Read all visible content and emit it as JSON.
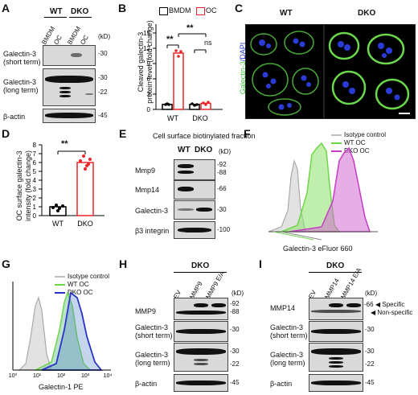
{
  "panelA": {
    "letter": "A",
    "wt": "WT",
    "dko": "DKO",
    "lanes": [
      "BMDM",
      "OC",
      "BMDM",
      "OC"
    ],
    "kd": "(kD)",
    "rows": [
      "Galectin-3\n(short term)",
      "Galectin-3\n(long term)",
      "β-actin"
    ],
    "row_labels": [
      "Galectin-3",
      "(short term)",
      "Galectin-3",
      "(long term)",
      "β-actin"
    ],
    "markers": [
      "-30",
      "-30",
      "-22",
      "-45"
    ]
  },
  "panelB": {
    "letter": "B",
    "legend": [
      "BMDM",
      "OC"
    ],
    "ylabel_line1": "Cleaved galectin-3",
    "ylabel_line2": "protein level (fold change)",
    "sig1": "**",
    "sig2": "**",
    "ns": "ns",
    "colors": {
      "bmdm": "#000000",
      "oc": "#e8262a"
    }
  },
  "panelC": {
    "letter": "C",
    "wt": "WT",
    "dko": "DKO",
    "side_label_green": "Galectin-3",
    "side_label_blue": "/DAPI"
  },
  "panelD": {
    "letter": "D",
    "ylabel_line1": "OC surface galectin-3",
    "ylabel_line2": "intensity (fold change)",
    "sig": "**",
    "colors": {
      "wt": "#000000",
      "dko": "#e8262a"
    }
  },
  "panelE": {
    "letter": "E",
    "title": "Cell surface biotinylated fraction",
    "wt": "WT",
    "dko": "DKO",
    "kd": "(kD)",
    "rows": [
      "Mmp9",
      "Mmp14",
      "Galectin-3",
      "β3 integrin"
    ],
    "markers": [
      "-92",
      "-88",
      "-66",
      "-30",
      "-100"
    ]
  },
  "panelF": {
    "letter": "F",
    "legend": [
      "Isotype control",
      "WT OC",
      "DKO OC"
    ],
    "xlabel": "Galectin-3 eFluor 660",
    "colors": {
      "iso": "#bdbdbd",
      "wt": "#6fd64a",
      "dko": "#c43cc4"
    }
  },
  "panelG": {
    "letter": "G",
    "legend": [
      "Isotype control",
      "WT OC",
      "DKO OC"
    ],
    "xlabel": "Galectin-1 PE",
    "colors": {
      "iso": "#bdbdbd",
      "wt": "#6fd64a",
      "dko": "#2a33c8"
    }
  },
  "panelH": {
    "letter": "H",
    "group": "DKO",
    "lanes": [
      "EV",
      "MMP9",
      "MMP9 E/A"
    ],
    "kd": "(kD)",
    "row_labels": [
      "MMP9",
      "Galectin-3",
      "(short term)",
      "Galectin-3",
      "(long term)",
      "β-actin"
    ],
    "markers": [
      "-92",
      "-88",
      "-30",
      "-30",
      "-22",
      "-45"
    ]
  },
  "panelI": {
    "letter": "I",
    "group": "DKO",
    "lanes": [
      "EV",
      "MMP14",
      "MMP14 E/A"
    ],
    "kd": "(kD)",
    "row_labels": [
      "MMP14",
      "Galectin-3",
      "(short term)",
      "Galectin-3",
      "(long term)",
      "β-actin"
    ],
    "markers": [
      "-66",
      "-30",
      "-30",
      "-22",
      "-45"
    ],
    "arrow_labels": [
      "Specific",
      "Non-specific"
    ]
  }
}
